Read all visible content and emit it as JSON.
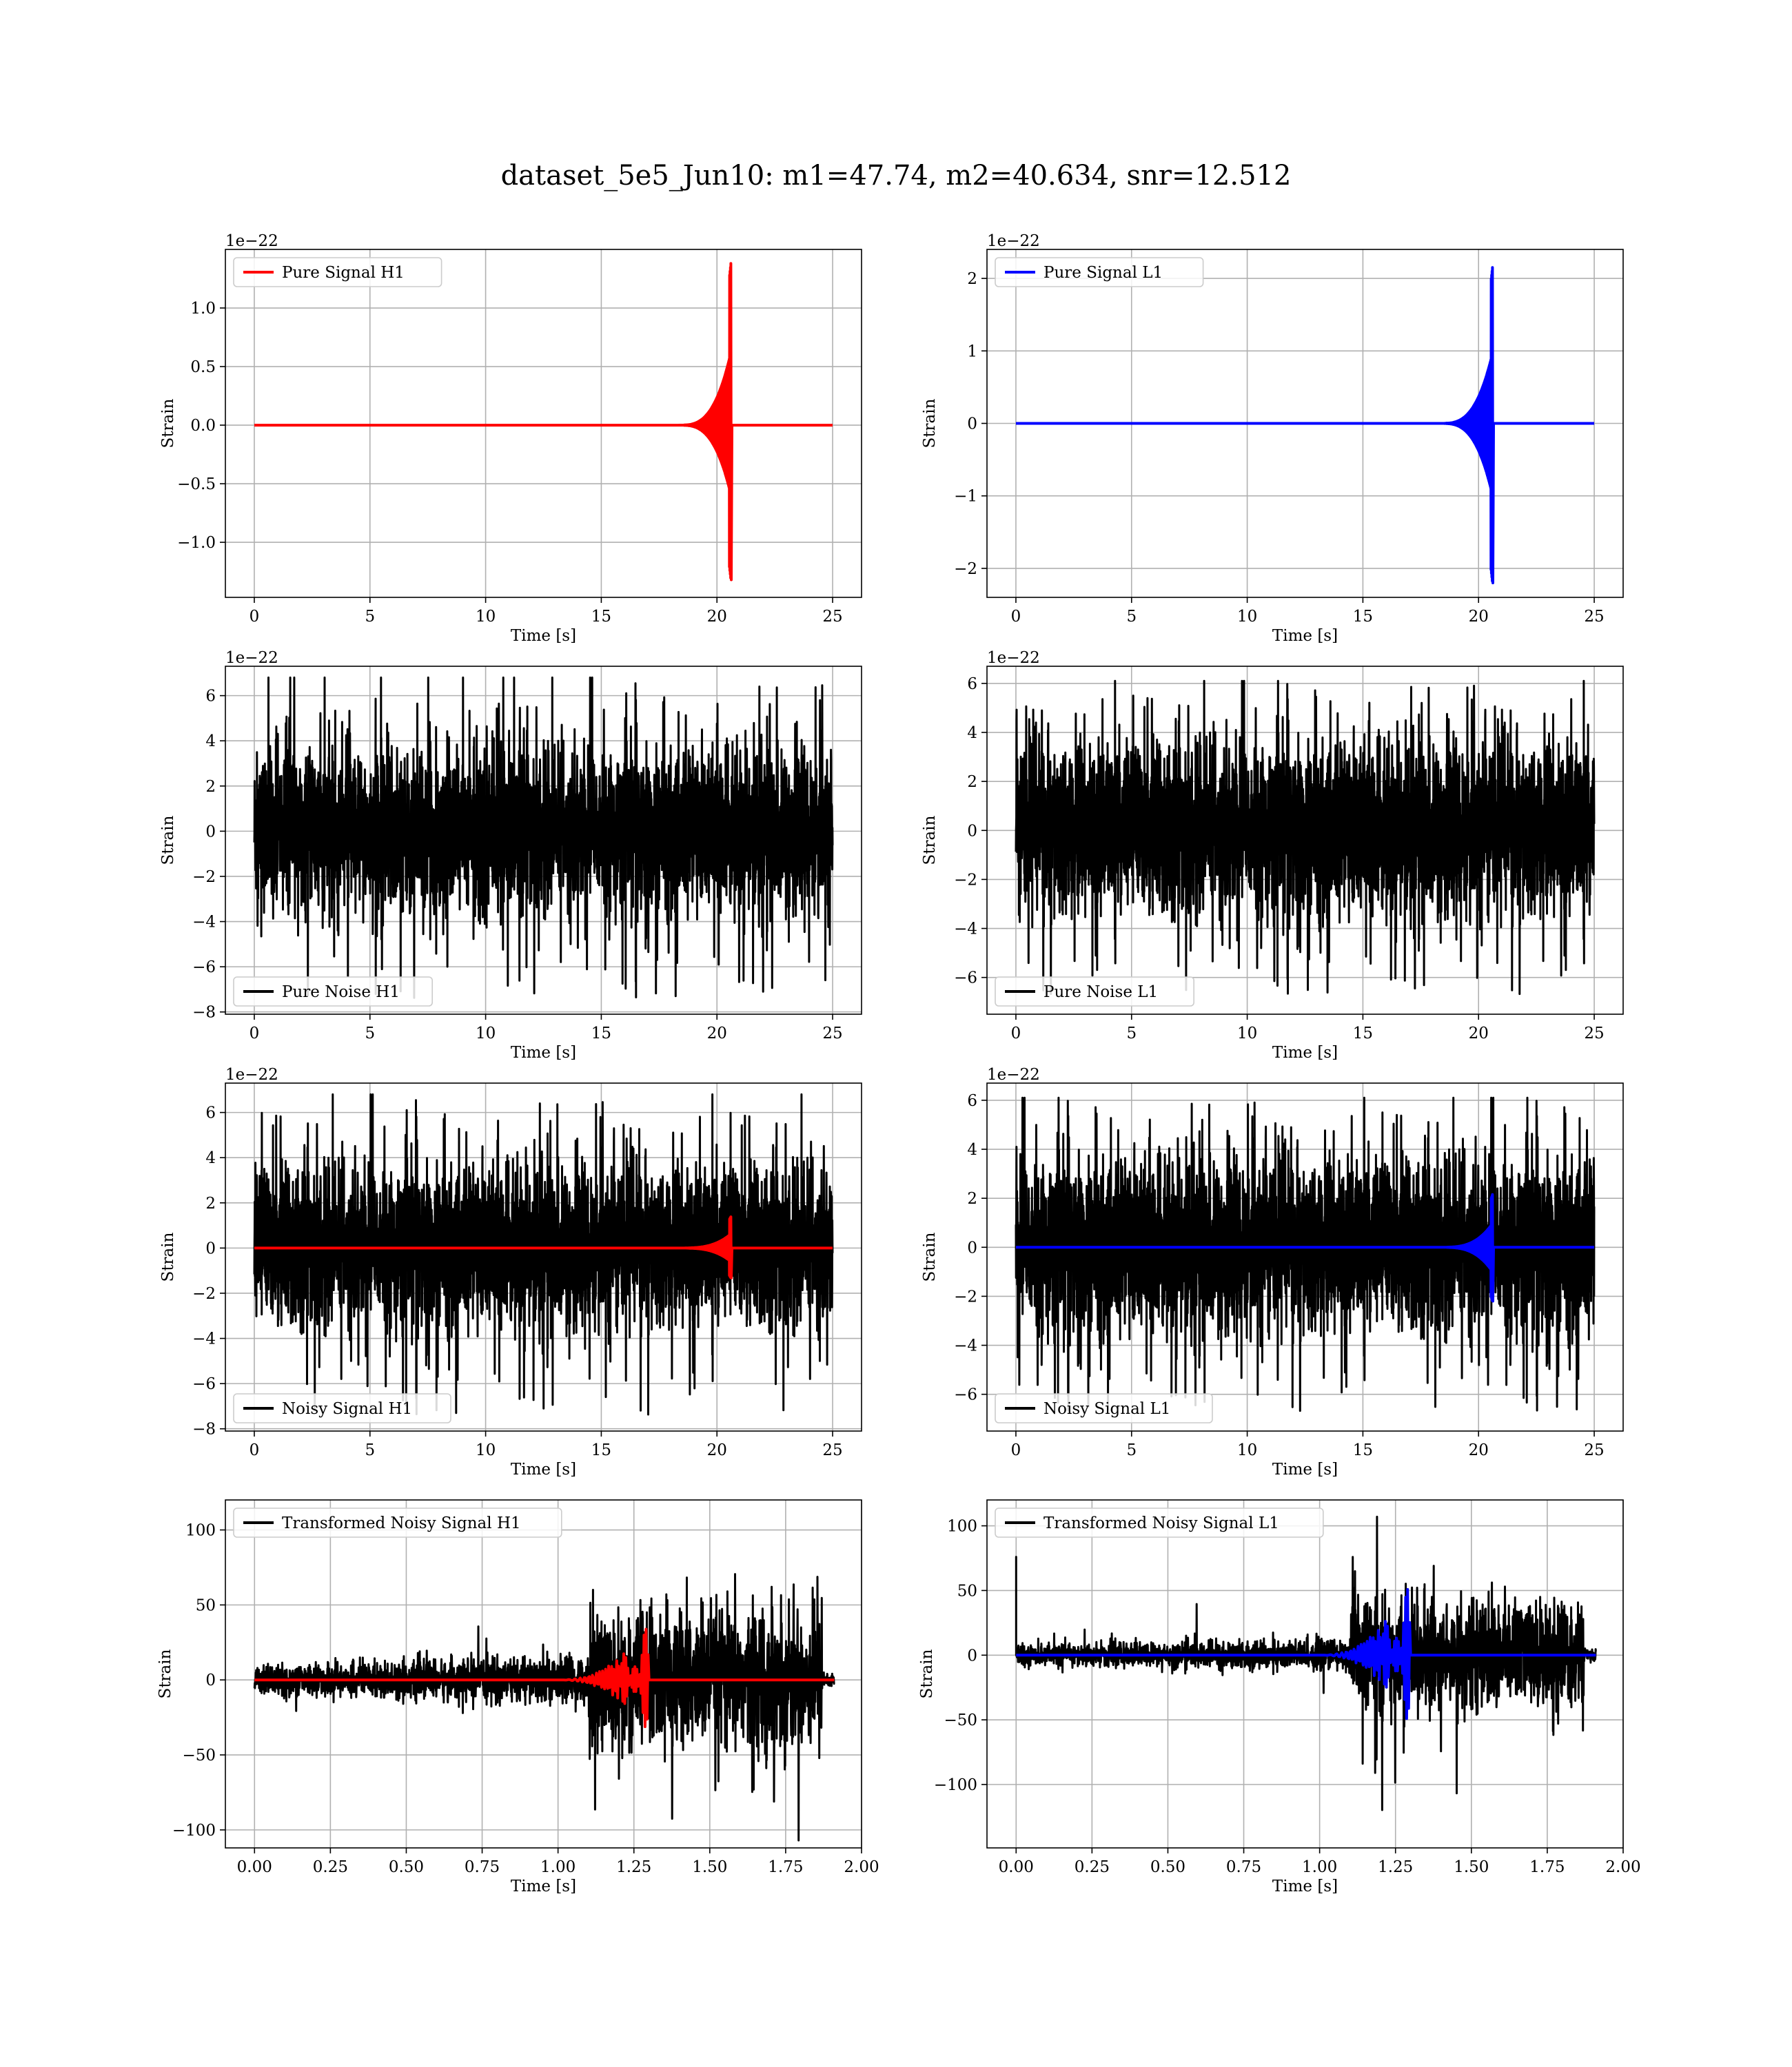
{
  "chart_data": {
    "title": "dataset_5e5_Jun10: m1=47.74, m2=40.634, snr=12.512",
    "panels": [
      {
        "type": "line",
        "legend": "Pure Signal H1",
        "legend_loc": "upper left",
        "xlabel": "Time [s]",
        "ylabel": "Strain",
        "offset_label": "1e−22",
        "xlim": [
          -1.25,
          26.25
        ],
        "ylim": [
          -1.47,
          1.5
        ],
        "xticks": [
          0,
          5,
          10,
          15,
          20,
          25
        ],
        "xtick_labels": [
          "0",
          "5",
          "10",
          "15",
          "20",
          "25"
        ],
        "yticks": [
          -1.0,
          -0.5,
          0.0,
          0.5,
          1.0
        ],
        "ytick_labels": [
          "−1.0",
          "−0.5",
          "0.0",
          "0.5",
          "1.0"
        ],
        "grid": true,
        "series": [
          {
            "kind": "chirp",
            "color": "#ff0000",
            "t_start": 0,
            "t_end": 25,
            "t_merge": 20.6,
            "peak": 1.38,
            "trough": -1.32
          }
        ]
      },
      {
        "type": "line",
        "legend": "Pure Signal L1",
        "legend_loc": "upper left",
        "xlabel": "Time [s]",
        "ylabel": "Strain",
        "offset_label": "1e−22",
        "xlim": [
          -1.25,
          26.25
        ],
        "ylim": [
          -2.4,
          2.4
        ],
        "xticks": [
          0,
          5,
          10,
          15,
          20,
          25
        ],
        "xtick_labels": [
          "0",
          "5",
          "10",
          "15",
          "20",
          "25"
        ],
        "yticks": [
          -2,
          -1,
          0,
          1,
          2
        ],
        "ytick_labels": [
          "−2",
          "−1",
          "0",
          "1",
          "2"
        ],
        "grid": true,
        "series": [
          {
            "kind": "chirp",
            "color": "#0000ff",
            "t_start": 0,
            "t_end": 25,
            "t_merge": 20.6,
            "peak": 2.15,
            "trough": -2.2
          }
        ]
      },
      {
        "type": "line",
        "legend": "Pure Noise H1",
        "legend_loc": "lower left",
        "xlabel": "Time [s]",
        "ylabel": "Strain",
        "offset_label": "1e−22",
        "xlim": [
          -1.25,
          26.25
        ],
        "ylim": [
          -8.1,
          7.3
        ],
        "xticks": [
          0,
          5,
          10,
          15,
          20,
          25
        ],
        "xtick_labels": [
          "0",
          "5",
          "10",
          "15",
          "20",
          "25"
        ],
        "yticks": [
          -8,
          -6,
          -4,
          -2,
          0,
          2,
          4,
          6
        ],
        "ytick_labels": [
          "−8",
          "−6",
          "−4",
          "−2",
          "0",
          "2",
          "4",
          "6"
        ],
        "grid": true,
        "series": [
          {
            "kind": "noise",
            "color": "#000000",
            "t_start": 0,
            "t_end": 25,
            "band": 2.9,
            "max": 6.8,
            "min": -7.4
          }
        ]
      },
      {
        "type": "line",
        "legend": "Pure Noise L1",
        "legend_loc": "lower left",
        "xlabel": "Time [s]",
        "ylabel": "Strain",
        "offset_label": "1e−22",
        "xlim": [
          -1.25,
          26.25
        ],
        "ylim": [
          -7.5,
          6.7
        ],
        "xticks": [
          0,
          5,
          10,
          15,
          20,
          25
        ],
        "xtick_labels": [
          "0",
          "5",
          "10",
          "15",
          "20",
          "25"
        ],
        "yticks": [
          -6,
          -4,
          -2,
          0,
          2,
          4,
          6
        ],
        "ytick_labels": [
          "−6",
          "−4",
          "−2",
          "0",
          "2",
          "4",
          "6"
        ],
        "grid": true,
        "series": [
          {
            "kind": "noise",
            "color": "#000000",
            "t_start": 0,
            "t_end": 25,
            "band": 2.9,
            "max": 6.1,
            "min": -6.7
          }
        ]
      },
      {
        "type": "line",
        "legend": "Noisy Signal H1",
        "legend_loc": "lower left",
        "xlabel": "Time [s]",
        "ylabel": "Strain",
        "offset_label": "1e−22",
        "xlim": [
          -1.25,
          26.25
        ],
        "ylim": [
          -8.1,
          7.3
        ],
        "xticks": [
          0,
          5,
          10,
          15,
          20,
          25
        ],
        "xtick_labels": [
          "0",
          "5",
          "10",
          "15",
          "20",
          "25"
        ],
        "yticks": [
          -8,
          -6,
          -4,
          -2,
          0,
          2,
          4,
          6
        ],
        "ytick_labels": [
          "−8",
          "−6",
          "−4",
          "−2",
          "0",
          "2",
          "4",
          "6"
        ],
        "grid": true,
        "series": [
          {
            "kind": "noise",
            "color": "#000000",
            "t_start": 0,
            "t_end": 25,
            "band": 2.9,
            "max": 6.8,
            "min": -7.4
          },
          {
            "kind": "chirp",
            "color": "#ff0000",
            "t_start": 0,
            "t_end": 25,
            "t_merge": 20.6,
            "peak": 1.38,
            "trough": -1.32
          }
        ]
      },
      {
        "type": "line",
        "legend": "Noisy Signal L1",
        "legend_loc": "lower left",
        "xlabel": "Time [s]",
        "ylabel": "Strain",
        "offset_label": "1e−22",
        "xlim": [
          -1.25,
          26.25
        ],
        "ylim": [
          -7.5,
          6.7
        ],
        "xticks": [
          0,
          5,
          10,
          15,
          20,
          25
        ],
        "xtick_labels": [
          "0",
          "5",
          "10",
          "15",
          "20",
          "25"
        ],
        "yticks": [
          -6,
          -4,
          -2,
          0,
          2,
          4,
          6
        ],
        "ytick_labels": [
          "−6",
          "−4",
          "−2",
          "0",
          "2",
          "4",
          "6"
        ],
        "grid": true,
        "series": [
          {
            "kind": "noise",
            "color": "#000000",
            "t_start": 0,
            "t_end": 25,
            "band": 2.9,
            "max": 6.1,
            "min": -6.7
          },
          {
            "kind": "chirp",
            "color": "#0000ff",
            "t_start": 0,
            "t_end": 25,
            "t_merge": 20.6,
            "peak": 2.15,
            "trough": -2.2
          }
        ]
      },
      {
        "type": "line",
        "legend": "Transformed Noisy Signal H1",
        "legend_loc": "upper left",
        "xlabel": "Time [s]",
        "ylabel": "Strain",
        "offset_label": "",
        "xlim": [
          -0.096,
          2.0
        ],
        "ylim": [
          -112,
          120
        ],
        "xticks": [
          0,
          0.25,
          0.5,
          0.75,
          1.0,
          1.25,
          1.5,
          1.75,
          2.0
        ],
        "xtick_labels": [
          "0.00",
          "0.25",
          "0.50",
          "0.75",
          "1.00",
          "1.25",
          "1.50",
          "1.75",
          "2.00"
        ],
        "yticks": [
          -100,
          -50,
          0,
          50,
          100
        ],
        "ytick_labels": [
          "−100",
          "−50",
          "0",
          "50",
          "100"
        ],
        "grid": true,
        "series": [
          {
            "kind": "whitened_noise",
            "color": "#000000",
            "t_start": 0,
            "t_end": 1.91,
            "t_loud": 1.1,
            "t_cut": 1.87,
            "low_amp": 9,
            "high_amp": 45,
            "max": 103,
            "min": -107
          },
          {
            "kind": "whitened_chirp",
            "color": "#ff0000",
            "t_start": 0,
            "t_end": 1.91,
            "t_merge": 1.3,
            "peak": 38,
            "trough": -35
          }
        ]
      },
      {
        "type": "line",
        "legend": "Transformed Noisy Signal L1",
        "legend_loc": "upper left",
        "xlabel": "Time [s]",
        "ylabel": "Strain",
        "offset_label": "",
        "xlim": [
          -0.096,
          2.0
        ],
        "ylim": [
          -149,
          120
        ],
        "xticks": [
          0,
          0.25,
          0.5,
          0.75,
          1.0,
          1.25,
          1.5,
          1.75,
          2.0
        ],
        "xtick_labels": [
          "0.00",
          "0.25",
          "0.50",
          "0.75",
          "1.00",
          "1.25",
          "1.50",
          "1.75",
          "2.00"
        ],
        "yticks": [
          -100,
          -50,
          0,
          50,
          100
        ],
        "ytick_labels": [
          "−100",
          "−50",
          "0",
          "50",
          "100"
        ],
        "grid": true,
        "series": [
          {
            "kind": "whitened_noise",
            "color": "#000000",
            "t_start": 0,
            "t_end": 1.91,
            "t_loud": 1.1,
            "t_cut": 1.87,
            "low_amp": 7,
            "high_amp": 40,
            "max": 107,
            "min": -138,
            "spike_t": 0.0,
            "spike_v": 76
          },
          {
            "kind": "whitened_chirp",
            "color": "#0000ff",
            "t_start": 0,
            "t_end": 1.91,
            "t_merge": 1.3,
            "peak": 57,
            "trough": -55
          }
        ]
      }
    ]
  }
}
